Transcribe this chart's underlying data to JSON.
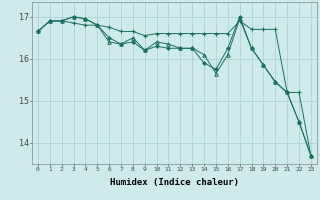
{
  "xlabel": "Humidex (Indice chaleur)",
  "bg_color": "#ceeaea",
  "grid_color": "#aacccc",
  "line_color": "#1a7060",
  "x_values": [
    0,
    1,
    2,
    3,
    4,
    5,
    6,
    7,
    8,
    9,
    10,
    11,
    12,
    13,
    14,
    15,
    16,
    17,
    18,
    19,
    20,
    21,
    22,
    23
  ],
  "series1": [
    16.65,
    16.9,
    16.9,
    16.85,
    16.8,
    16.8,
    16.75,
    16.65,
    16.65,
    16.55,
    16.6,
    16.6,
    16.6,
    16.6,
    16.6,
    16.6,
    16.6,
    16.9,
    16.7,
    16.7,
    16.7,
    15.2,
    15.2,
    13.7
  ],
  "series2": [
    16.65,
    16.9,
    16.9,
    17.0,
    16.95,
    16.8,
    16.5,
    16.35,
    16.4,
    16.2,
    16.3,
    16.25,
    16.25,
    16.25,
    15.9,
    15.75,
    16.25,
    17.0,
    16.25,
    15.85,
    15.45,
    15.2,
    14.5,
    13.7
  ],
  "series3": [
    16.65,
    16.9,
    16.9,
    17.0,
    16.95,
    16.8,
    16.4,
    16.35,
    16.5,
    16.2,
    16.4,
    16.35,
    16.25,
    16.25,
    16.1,
    15.65,
    16.1,
    16.95,
    16.25,
    15.85,
    15.45,
    15.2,
    14.5,
    13.7
  ],
  "ylim": [
    13.5,
    17.35
  ],
  "yticks": [
    14,
    15,
    16,
    17
  ],
  "xlim": [
    -0.5,
    23.5
  ]
}
